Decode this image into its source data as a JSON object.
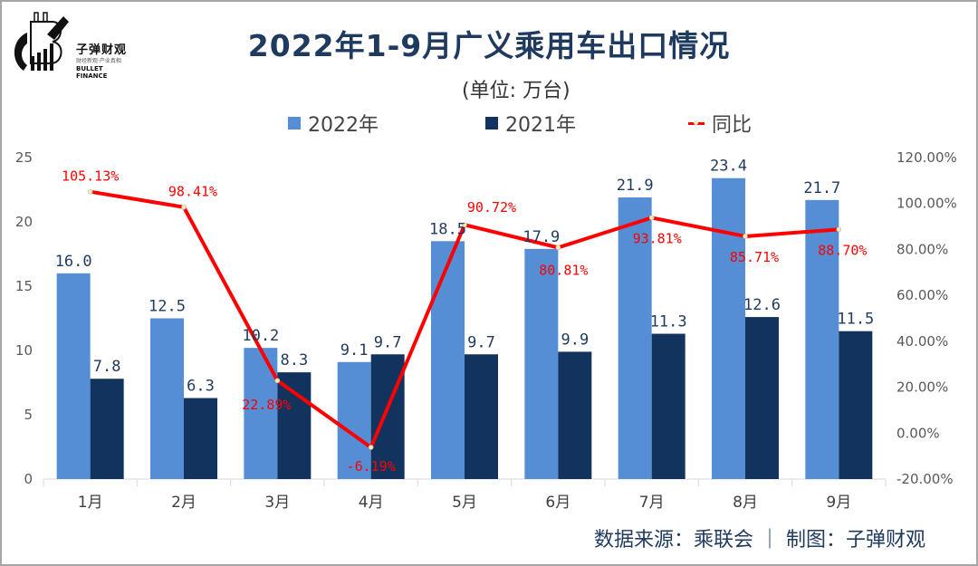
{
  "header": {
    "title": "2022年1-9月广义乘用车出口情况",
    "unit": "(单位: 万台)"
  },
  "logo": {
    "name_cn": "子弹财观",
    "tagline": "财经新观·产业真相",
    "name_en": "BULLET FINANCE"
  },
  "legend": {
    "items": [
      {
        "label": "2022年",
        "color": "#558ed5",
        "type": "bar"
      },
      {
        "label": "2021年",
        "color": "#12335e",
        "type": "bar"
      },
      {
        "label": "同比",
        "color": "#ff0000",
        "type": "line"
      }
    ]
  },
  "footer": {
    "source": "数据来源：乘联会 ｜ 制图：子弹财观"
  },
  "chart_data": {
    "type": "bar",
    "title": "2022年1-9月广义乘用车出口情况",
    "subtitle": "(单位: 万台)",
    "categories": [
      "1月",
      "2月",
      "3月",
      "4月",
      "5月",
      "6月",
      "7月",
      "8月",
      "9月"
    ],
    "series": [
      {
        "name": "2022年",
        "type": "bar",
        "axis": "left",
        "color": "#558ed5",
        "values": [
          16.0,
          12.5,
          10.2,
          9.1,
          18.5,
          17.9,
          21.9,
          23.4,
          21.7
        ],
        "labels": [
          "16.0",
          "12.5",
          "10.2",
          "9.1",
          "18.5",
          "17.9",
          "21.9",
          "23.4",
          "21.7"
        ]
      },
      {
        "name": "2021年",
        "type": "bar",
        "axis": "left",
        "color": "#12335e",
        "values": [
          7.8,
          6.3,
          8.3,
          9.7,
          9.7,
          9.9,
          11.3,
          12.6,
          11.5
        ],
        "labels": [
          "7.8",
          "6.3",
          "8.3",
          "9.7",
          "9.7",
          "9.9",
          "11.3",
          "12.6",
          "11.5"
        ]
      },
      {
        "name": "同比",
        "type": "line",
        "axis": "right",
        "color": "#ff0000",
        "values": [
          105.13,
          98.41,
          22.89,
          -6.19,
          90.72,
          80.81,
          93.81,
          85.71,
          88.7
        ],
        "labels": [
          "105.13%",
          "98.41%",
          "22.89%",
          "-6.19%",
          "90.72%",
          "80.81%",
          "93.81%",
          "85.71%",
          "88.70%"
        ]
      }
    ],
    "y_left": {
      "min": 0,
      "max": 25,
      "ticks": [
        "0",
        "5",
        "10",
        "15",
        "20",
        "25"
      ]
    },
    "y_right": {
      "min": -20,
      "max": 120,
      "ticks": [
        "-20.00%",
        "0.00%",
        "20.00%",
        "40.00%",
        "60.00%",
        "80.00%",
        "100.00%",
        "120.00%"
      ]
    },
    "xlabel": "",
    "ylabel": "",
    "grid": false,
    "legend_position": "top"
  }
}
